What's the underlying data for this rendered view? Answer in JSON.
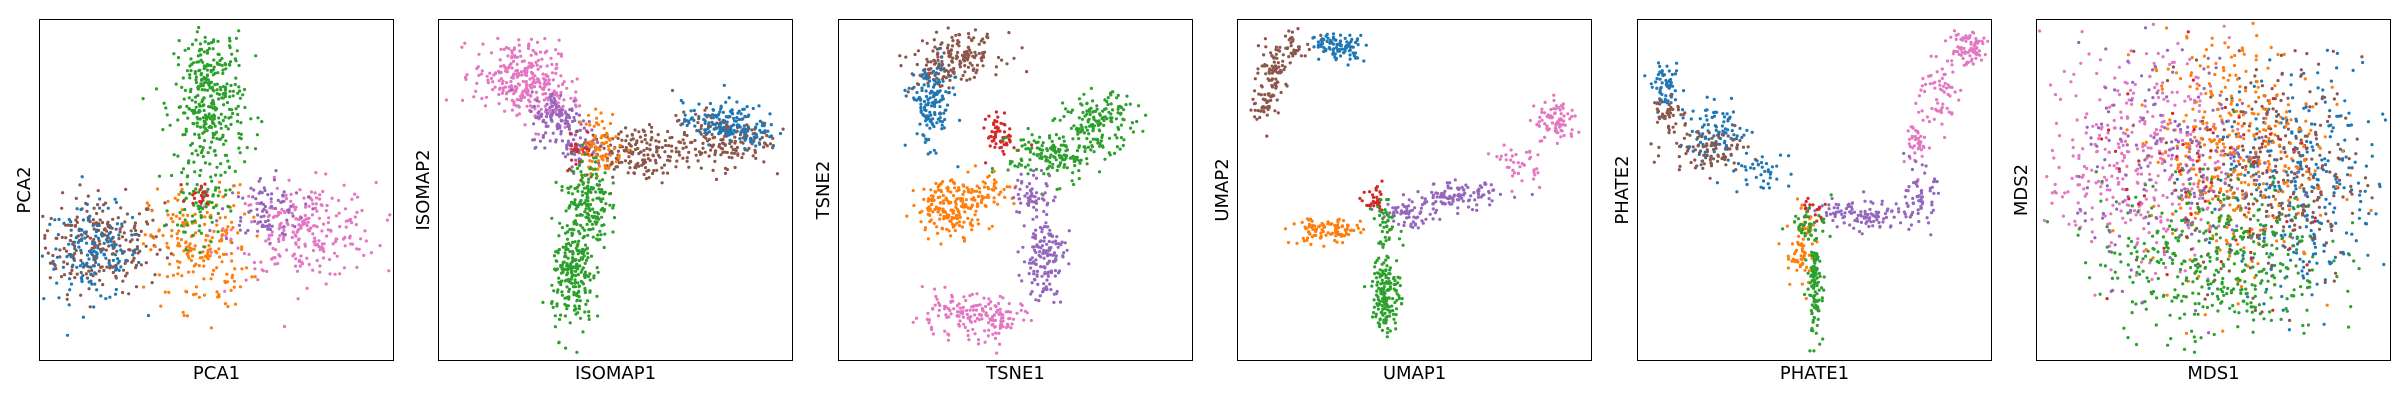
{
  "colors": {
    "cluster_0": "#1f77b4",
    "cluster_1": "#ff7f0e",
    "cluster_2": "#2ca02c",
    "cluster_3": "#d62728",
    "cluster_4": "#9467bd",
    "cluster_5": "#8c564b",
    "cluster_6": "#e377c2"
  },
  "chart_data": [
    {
      "type": "scatter",
      "title": "",
      "xlabel": "PCA1",
      "ylabel": "PCA2",
      "xlim": [
        0,
        100
      ],
      "ylim": [
        0,
        100
      ],
      "ticks": "none",
      "grid": false,
      "legend": "none",
      "series": [
        {
          "color": "#8c564b",
          "clusters": [
            {
              "x": 17,
              "y": 34,
              "sx": 9,
              "sy": 7,
              "n": 260
            }
          ]
        },
        {
          "color": "#1f77b4",
          "clusters": [
            {
              "x": 15,
              "y": 31,
              "sx": 7,
              "sy": 7,
              "n": 150
            }
          ]
        },
        {
          "color": "#e377c2",
          "clusters": [
            {
              "x": 75,
              "y": 38,
              "sx": 10,
              "sy": 7,
              "n": 260
            }
          ]
        },
        {
          "color": "#9467bd",
          "clusters": [
            {
              "x": 63,
              "y": 44,
              "sx": 6,
              "sy": 5,
              "n": 90
            }
          ]
        },
        {
          "color": "#ff7f0e",
          "clusters": [
            {
              "x": 45,
              "y": 33,
              "sx": 7,
              "sy": 9,
              "n": 200
            }
          ]
        },
        {
          "color": "#2ca02c",
          "clusters": [
            {
              "x": 48,
              "y": 75,
              "sx": 5,
              "sy": 12,
              "n": 380
            },
            {
              "x": 45,
              "y": 45,
              "sx": 4,
              "sy": 6,
              "n": 60
            }
          ]
        },
        {
          "color": "#d62728",
          "clusters": [
            {
              "x": 46,
              "y": 49,
              "sx": 2,
              "sy": 2,
              "n": 20
            }
          ]
        }
      ]
    },
    {
      "type": "scatter",
      "title": "",
      "xlabel": "ISOMAP1",
      "ylabel": "ISOMAP2",
      "xlim": [
        0,
        100
      ],
      "ylim": [
        0,
        100
      ],
      "ticks": "none",
      "grid": false,
      "legend": "none",
      "series": [
        {
          "color": "#e377c2",
          "clusters": [
            {
              "x": 22,
              "y": 84,
              "sx": 6,
              "sy": 5,
              "n": 220
            },
            {
              "x": 30,
              "y": 76,
              "sx": 5,
              "sy": 4,
              "n": 100
            }
          ]
        },
        {
          "color": "#9467bd",
          "clusters": [
            {
              "x": 34,
              "y": 71,
              "sx": 4,
              "sy": 4,
              "n": 110
            },
            {
              "x": 40,
              "y": 63,
              "sx": 3,
              "sy": 3,
              "n": 60
            }
          ]
        },
        {
          "color": "#8c564b",
          "clusters": [
            {
              "x": 56,
              "y": 61,
              "sx": 7,
              "sy": 4,
              "n": 170
            },
            {
              "x": 80,
              "y": 65,
              "sx": 7,
              "sy": 4,
              "n": 180
            }
          ]
        },
        {
          "color": "#1f77b4",
          "clusters": [
            {
              "x": 79,
              "y": 70,
              "sx": 5,
              "sy": 3,
              "n": 110
            },
            {
              "x": 88,
              "y": 68,
              "sx": 4,
              "sy": 3,
              "n": 60
            }
          ]
        },
        {
          "color": "#d62728",
          "clusters": [
            {
              "x": 40,
              "y": 62,
              "sx": 2,
              "sy": 3,
              "n": 25
            }
          ]
        },
        {
          "color": "#ff7f0e",
          "clusters": [
            {
              "x": 46,
              "y": 63,
              "sx": 3,
              "sy": 5,
              "n": 80
            }
          ]
        },
        {
          "color": "#2ca02c",
          "clusters": [
            {
              "x": 42,
              "y": 46,
              "sx": 3,
              "sy": 7,
              "n": 180
            },
            {
              "x": 38,
              "y": 24,
              "sx": 3,
              "sy": 8,
              "n": 220
            }
          ]
        }
      ]
    },
    {
      "type": "scatter",
      "title": "",
      "xlabel": "TSNE1",
      "ylabel": "TSNE2",
      "xlim": [
        0,
        100
      ],
      "ylim": [
        0,
        100
      ],
      "ticks": "none",
      "grid": false,
      "legend": "none",
      "series": [
        {
          "color": "#8c564b",
          "clusters": [
            {
              "x": 34,
              "y": 90,
              "sx": 6,
              "sy": 3,
              "n": 140
            },
            {
              "x": 28,
              "y": 84,
              "sx": 4,
              "sy": 3,
              "n": 50
            }
          ]
        },
        {
          "color": "#1f77b4",
          "clusters": [
            {
              "x": 26,
              "y": 75,
              "sx": 3,
              "sy": 6,
              "n": 150
            }
          ]
        },
        {
          "color": "#d62728",
          "clusters": [
            {
              "x": 46,
              "y": 66,
              "sx": 2,
              "sy": 3,
              "n": 60
            }
          ]
        },
        {
          "color": "#2ca02c",
          "clusters": [
            {
              "x": 60,
              "y": 60,
              "sx": 6,
              "sy": 4,
              "n": 160
            },
            {
              "x": 74,
              "y": 70,
              "sx": 5,
              "sy": 4,
              "n": 150
            }
          ]
        },
        {
          "color": "#ff7f0e",
          "clusters": [
            {
              "x": 32,
              "y": 45,
              "sx": 5,
              "sy": 4,
              "n": 180
            },
            {
              "x": 42,
              "y": 50,
              "sx": 4,
              "sy": 3,
              "n": 50
            }
          ]
        },
        {
          "color": "#9467bd",
          "clusters": [
            {
              "x": 55,
              "y": 48,
              "sx": 3,
              "sy": 4,
              "n": 60
            },
            {
              "x": 58,
              "y": 30,
              "sx": 3,
              "sy": 6,
              "n": 140
            }
          ]
        },
        {
          "color": "#e377c2",
          "clusters": [
            {
              "x": 34,
              "y": 13,
              "sx": 7,
              "sy": 3,
              "n": 120
            },
            {
              "x": 46,
              "y": 12,
              "sx": 4,
              "sy": 3,
              "n": 60
            }
          ]
        }
      ]
    },
    {
      "type": "scatter",
      "title": "",
      "xlabel": "UMAP1",
      "ylabel": "UMAP2",
      "xlim": [
        0,
        100
      ],
      "ylim": [
        0,
        100
      ],
      "ticks": "none",
      "grid": false,
      "legend": "none",
      "series": [
        {
          "color": "#1f77b4",
          "clusters": [
            {
              "x": 30,
              "y": 92,
              "sx": 3,
              "sy": 2,
              "n": 70
            },
            {
              "x": 25,
              "y": 93,
              "sx": 2,
              "sy": 2,
              "n": 30
            }
          ]
        },
        {
          "color": "#8c564b",
          "clusters": [
            {
              "x": 10,
              "y": 86,
              "sx": 2,
              "sy": 3,
              "n": 60
            },
            {
              "x": 8,
              "y": 76,
              "sx": 2,
              "sy": 3,
              "n": 50
            },
            {
              "x": 16,
              "y": 92,
              "sx": 3,
              "sy": 2,
              "n": 40
            }
          ]
        },
        {
          "color": "#e377c2",
          "clusters": [
            {
              "x": 90,
              "y": 70,
              "sx": 3,
              "sy": 3,
              "n": 80
            },
            {
              "x": 80,
              "y": 58,
              "sx": 3,
              "sy": 3,
              "n": 40
            }
          ]
        },
        {
          "color": "#9467bd",
          "clusters": [
            {
              "x": 62,
              "y": 48,
              "sx": 6,
              "sy": 2,
              "n": 110
            },
            {
              "x": 48,
              "y": 43,
              "sx": 4,
              "sy": 2,
              "n": 60
            }
          ]
        },
        {
          "color": "#d62728",
          "clusters": [
            {
              "x": 39,
              "y": 46,
              "sx": 1.5,
              "sy": 2,
              "n": 30
            }
          ]
        },
        {
          "color": "#ff7f0e",
          "clusters": [
            {
              "x": 25,
              "y": 38,
              "sx": 5,
              "sy": 2,
              "n": 110
            }
          ]
        },
        {
          "color": "#2ca02c",
          "clusters": [
            {
              "x": 42,
              "y": 40,
              "sx": 2,
              "sy": 3,
              "n": 40
            },
            {
              "x": 42,
              "y": 20,
              "sx": 2,
              "sy": 6,
              "n": 160
            }
          ]
        }
      ]
    },
    {
      "type": "scatter",
      "title": "",
      "xlabel": "PHATE1",
      "ylabel": "PHATE2",
      "xlim": [
        0,
        100
      ],
      "ylim": [
        0,
        100
      ],
      "ticks": "none",
      "grid": false,
      "legend": "none",
      "series": [
        {
          "color": "#1f77b4",
          "clusters": [
            {
              "x": 8,
              "y": 80,
              "sx": 2,
              "sy": 3,
              "n": 60
            },
            {
              "x": 22,
              "y": 67,
              "sx": 5,
              "sy": 4,
              "n": 90
            },
            {
              "x": 35,
              "y": 55,
              "sx": 4,
              "sy": 3,
              "n": 40
            }
          ]
        },
        {
          "color": "#8c564b",
          "clusters": [
            {
              "x": 20,
              "y": 62,
              "sx": 6,
              "sy": 3,
              "n": 90
            },
            {
              "x": 8,
              "y": 73,
              "sx": 2,
              "sy": 3,
              "n": 40
            }
          ]
        },
        {
          "color": "#e377c2",
          "clusters": [
            {
              "x": 93,
              "y": 92,
              "sx": 3,
              "sy": 3,
              "n": 80
            },
            {
              "x": 85,
              "y": 78,
              "sx": 3,
              "sy": 5,
              "n": 60
            },
            {
              "x": 80,
              "y": 64,
              "sx": 2,
              "sy": 4,
              "n": 40
            }
          ]
        },
        {
          "color": "#9467bd",
          "clusters": [
            {
              "x": 80,
              "y": 48,
              "sx": 2,
              "sy": 4,
              "n": 60
            },
            {
              "x": 67,
              "y": 42,
              "sx": 5,
              "sy": 2,
              "n": 70
            },
            {
              "x": 58,
              "y": 44,
              "sx": 4,
              "sy": 2,
              "n": 40
            }
          ]
        },
        {
          "color": "#d62728",
          "clusters": [
            {
              "x": 49,
              "y": 44,
              "sx": 2,
              "sy": 2,
              "n": 20
            }
          ]
        },
        {
          "color": "#ff7f0e",
          "clusters": [
            {
              "x": 46,
              "y": 32,
              "sx": 2,
              "sy": 6,
              "n": 70
            }
          ]
        },
        {
          "color": "#2ca02c",
          "clusters": [
            {
              "x": 49,
              "y": 40,
              "sx": 3,
              "sy": 2,
              "n": 40
            },
            {
              "x": 50,
              "y": 22,
              "sx": 1,
              "sy": 7,
              "n": 110
            }
          ]
        }
      ]
    },
    {
      "type": "scatter",
      "title": "",
      "xlabel": "MDS1",
      "ylabel": "MDS2",
      "xlim": [
        0,
        100
      ],
      "ylim": [
        0,
        100
      ],
      "ticks": "none",
      "grid": false,
      "legend": "none",
      "series": [
        {
          "color": "#e377c2",
          "clusters": [
            {
              "x": 28,
              "y": 60,
              "sx": 13,
              "sy": 16,
              "n": 380
            }
          ]
        },
        {
          "color": "#1f77b4",
          "clusters": [
            {
              "x": 75,
              "y": 50,
              "sx": 12,
              "sy": 17,
              "n": 320
            }
          ]
        },
        {
          "color": "#8c564b",
          "clusters": [
            {
              "x": 68,
              "y": 55,
              "sx": 12,
              "sy": 17,
              "n": 320
            }
          ]
        },
        {
          "color": "#ff7f0e",
          "clusters": [
            {
              "x": 55,
              "y": 62,
              "sx": 12,
              "sy": 18,
              "n": 380
            }
          ]
        },
        {
          "color": "#2ca02c",
          "clusters": [
            {
              "x": 50,
              "y": 30,
              "sx": 16,
              "sy": 12,
              "n": 420
            }
          ]
        },
        {
          "color": "#9467bd",
          "clusters": [
            {
              "x": 40,
              "y": 58,
              "sx": 14,
              "sy": 16,
              "n": 200
            }
          ]
        },
        {
          "color": "#d62728",
          "clusters": [
            {
              "x": 50,
              "y": 50,
              "sx": 18,
              "sy": 18,
              "n": 60
            }
          ]
        }
      ]
    }
  ]
}
